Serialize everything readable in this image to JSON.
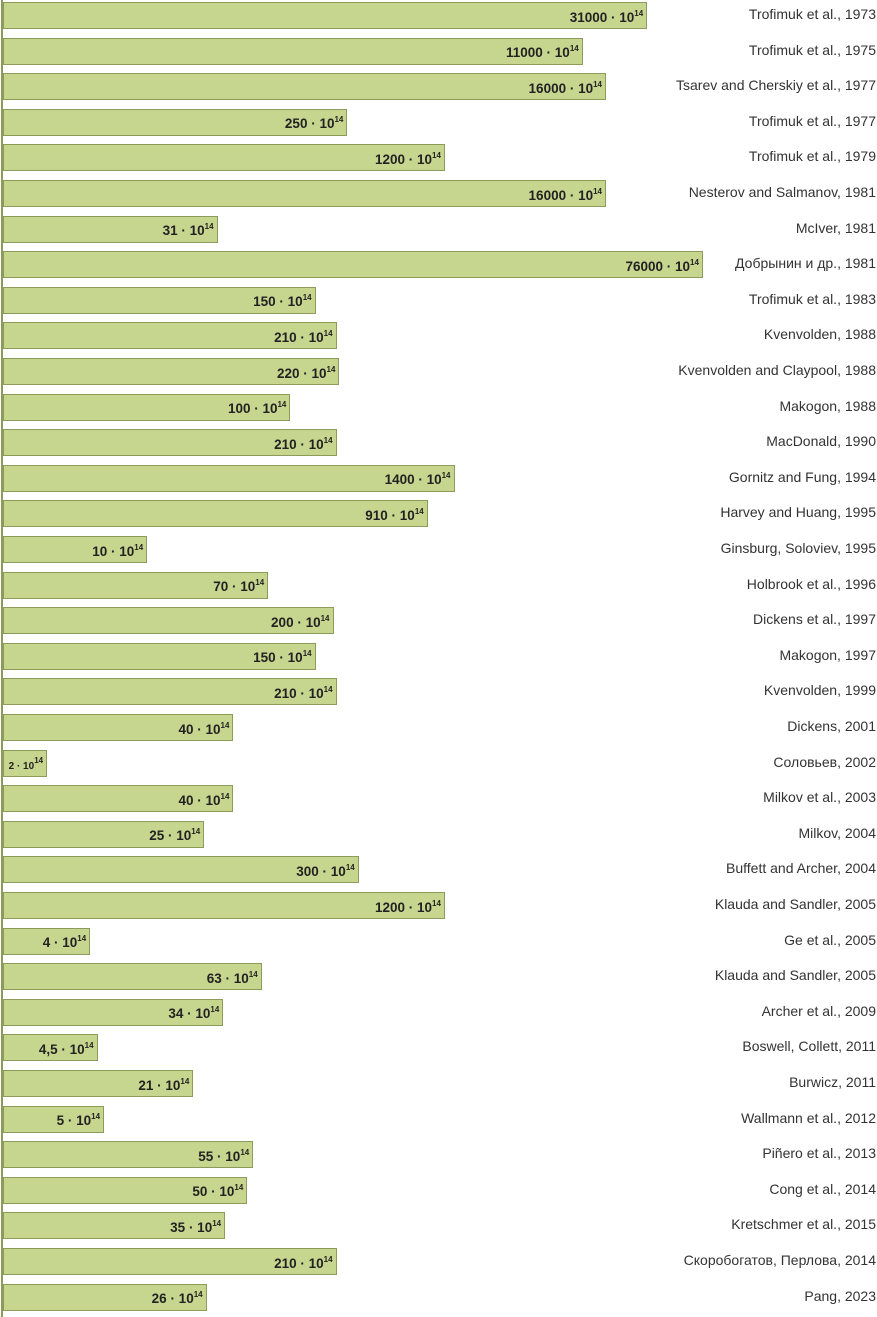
{
  "chart_data": {
    "type": "bar",
    "orientation": "horizontal",
    "x_scale": "log",
    "grid": false,
    "label_exponent": "14",
    "label_multiplier_base": "10",
    "colors": {
      "bar_fill": "#c6d68f",
      "bar_border": "#8c9a5a"
    },
    "categories": [
      "Trofimuk et al., 1973",
      "Trofimuk et al., 1975",
      "Tsarev and Cherskiy et al., 1977",
      "Trofimuk et al., 1977",
      "Trofimuk et al., 1979",
      "Nesterov and Salmanov, 1981",
      "McIver, 1981",
      "Добрынин и др., 1981",
      "Trofimuk et al., 1983",
      "Kvenvolden, 1988",
      "Kvenvolden and Claypool, 1988",
      "Makogon, 1988",
      "MacDonald, 1990",
      "Gornitz and Fung, 1994",
      "Harvey and Huang, 1995",
      "Ginsburg, Soloviev, 1995",
      "Holbrook et al., 1996",
      "Dickens et al., 1997",
      "Makogon, 1997",
      "Kvenvolden, 1999",
      "Dickens, 2001",
      "Соловьев, 2002",
      "Milkov et al., 2003",
      "Milkov, 2004",
      "Buffett and Archer, 2004",
      "Klauda and Sandler, 2005",
      "Ge et al., 2005",
      "Klauda and Sandler, 2005",
      "Archer et al., 2009",
      "Boswell, Collett, 2011",
      "Burwicz, 2011",
      "Wallmann et al., 2012",
      "Piñero et al., 2013",
      "Cong et al., 2014",
      "Kretschmer et al., 2015",
      "Скоробогатов, Перлова, 2014",
      "Pang, 2023"
    ],
    "values": [
      31000,
      11000,
      16000,
      250,
      1200,
      16000,
      31,
      76000,
      150,
      210,
      220,
      100,
      210,
      1400,
      910,
      10,
      70,
      200,
      150,
      210,
      40,
      2,
      40,
      25,
      300,
      1200,
      4,
      63,
      34,
      4.5,
      21,
      5,
      55,
      50,
      35,
      210,
      26
    ],
    "labels": [
      "31000",
      "11000",
      "16000",
      "250",
      "1200",
      "16000",
      "31",
      "76000",
      "150",
      "210",
      "220",
      "100",
      "210",
      "1400",
      "910",
      "10",
      "70",
      "200",
      "150",
      "210",
      "40",
      "2",
      "40",
      "25",
      "300",
      "1200",
      "4",
      "63",
      "34",
      "4,5",
      "21",
      "5",
      "55",
      "50",
      "35",
      "210",
      "26"
    ]
  }
}
